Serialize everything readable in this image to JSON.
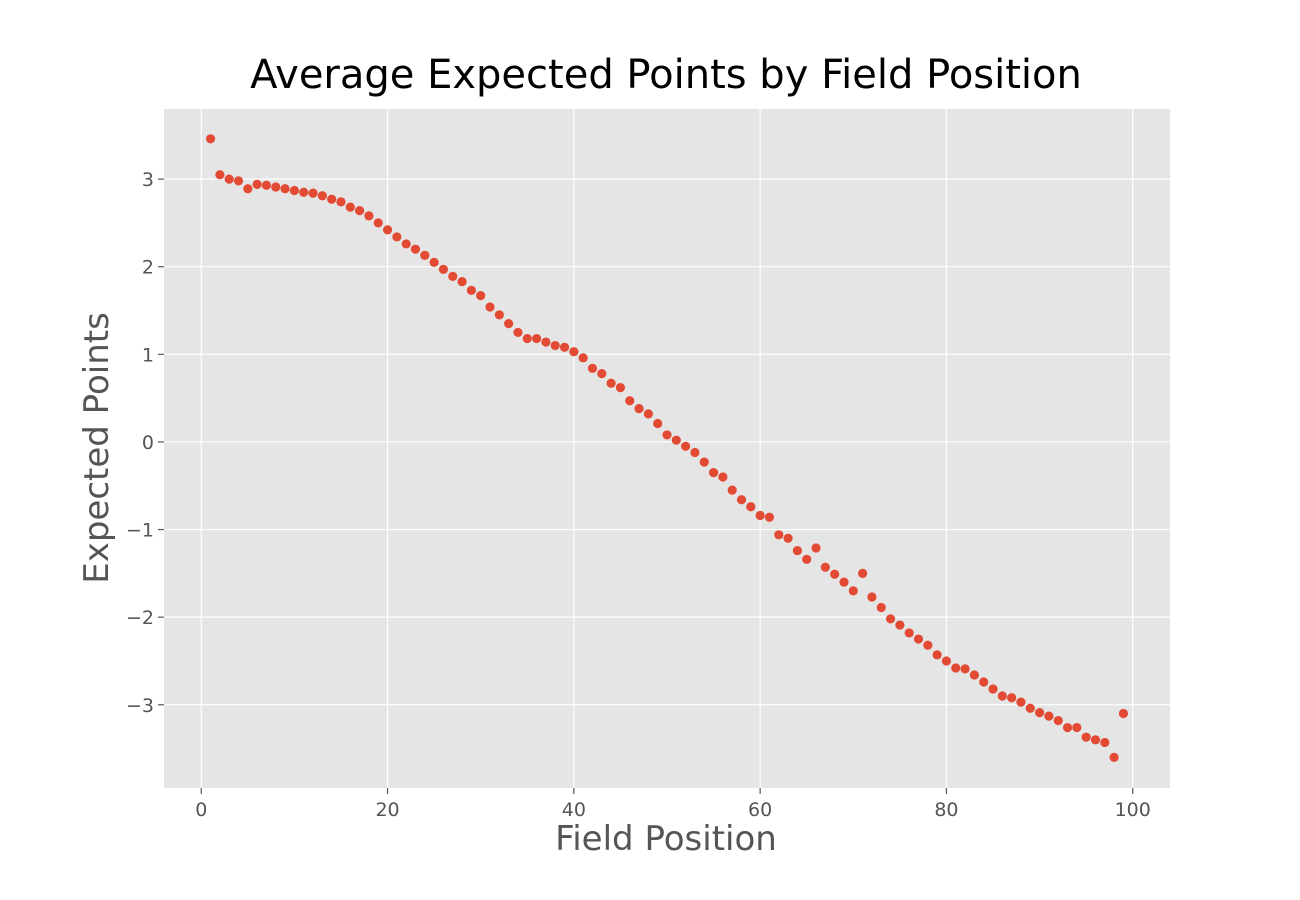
{
  "chart_data": {
    "type": "scatter",
    "title": "Average Expected Points by Field Position",
    "xlabel": "Field Position",
    "ylabel": "Expected Points",
    "xlim": [
      -4,
      104
    ],
    "ylim": [
      -3.95,
      3.8
    ],
    "xticks": [
      0,
      20,
      40,
      60,
      80,
      100
    ],
    "yticks": [
      -3,
      -2,
      -1,
      0,
      1,
      2,
      3
    ],
    "grid": true,
    "point_color": "#E24A33",
    "background_color": "#E5E5E5",
    "x": [
      1,
      2,
      3,
      4,
      5,
      6,
      7,
      8,
      9,
      10,
      11,
      12,
      13,
      14,
      15,
      16,
      17,
      18,
      19,
      20,
      21,
      22,
      23,
      24,
      25,
      26,
      27,
      28,
      29,
      30,
      31,
      32,
      33,
      34,
      35,
      36,
      37,
      38,
      39,
      40,
      41,
      42,
      43,
      44,
      45,
      46,
      47,
      48,
      49,
      50,
      51,
      52,
      53,
      54,
      55,
      56,
      57,
      58,
      59,
      60,
      61,
      62,
      63,
      64,
      65,
      66,
      67,
      68,
      69,
      70,
      71,
      72,
      73,
      74,
      75,
      76,
      77,
      78,
      79,
      80,
      81,
      82,
      83,
      84,
      85,
      86,
      87,
      88,
      89,
      90,
      91,
      92,
      93,
      94,
      95,
      96,
      97,
      98,
      99
    ],
    "y": [
      3.46,
      3.05,
      3.0,
      2.98,
      2.89,
      2.94,
      2.93,
      2.91,
      2.89,
      2.87,
      2.85,
      2.84,
      2.81,
      2.77,
      2.74,
      2.68,
      2.64,
      2.58,
      2.5,
      2.42,
      2.34,
      2.26,
      2.2,
      2.13,
      2.05,
      1.97,
      1.89,
      1.83,
      1.73,
      1.67,
      1.54,
      1.45,
      1.35,
      1.25,
      1.18,
      1.18,
      1.14,
      1.1,
      1.08,
      1.03,
      0.96,
      0.84,
      0.78,
      0.67,
      0.62,
      0.47,
      0.38,
      0.32,
      0.21,
      0.08,
      0.02,
      -0.05,
      -0.12,
      -0.23,
      -0.35,
      -0.4,
      -0.55,
      -0.66,
      -0.74,
      -0.84,
      -0.86,
      -1.06,
      -1.1,
      -1.24,
      -1.34,
      -1.21,
      -1.43,
      -1.51,
      -1.6,
      -1.7,
      -1.5,
      -1.77,
      -1.89,
      -2.02,
      -2.09,
      -2.18,
      -2.25,
      -2.32,
      -2.43,
      -2.5,
      -2.58,
      -2.59,
      -2.66,
      -2.74,
      -2.82,
      -2.9,
      -2.92,
      -2.97,
      -3.04,
      -3.09,
      -3.13,
      -3.18,
      -3.26,
      -3.26,
      -3.37,
      -3.4,
      -3.43,
      -3.6,
      -3.1
    ]
  }
}
